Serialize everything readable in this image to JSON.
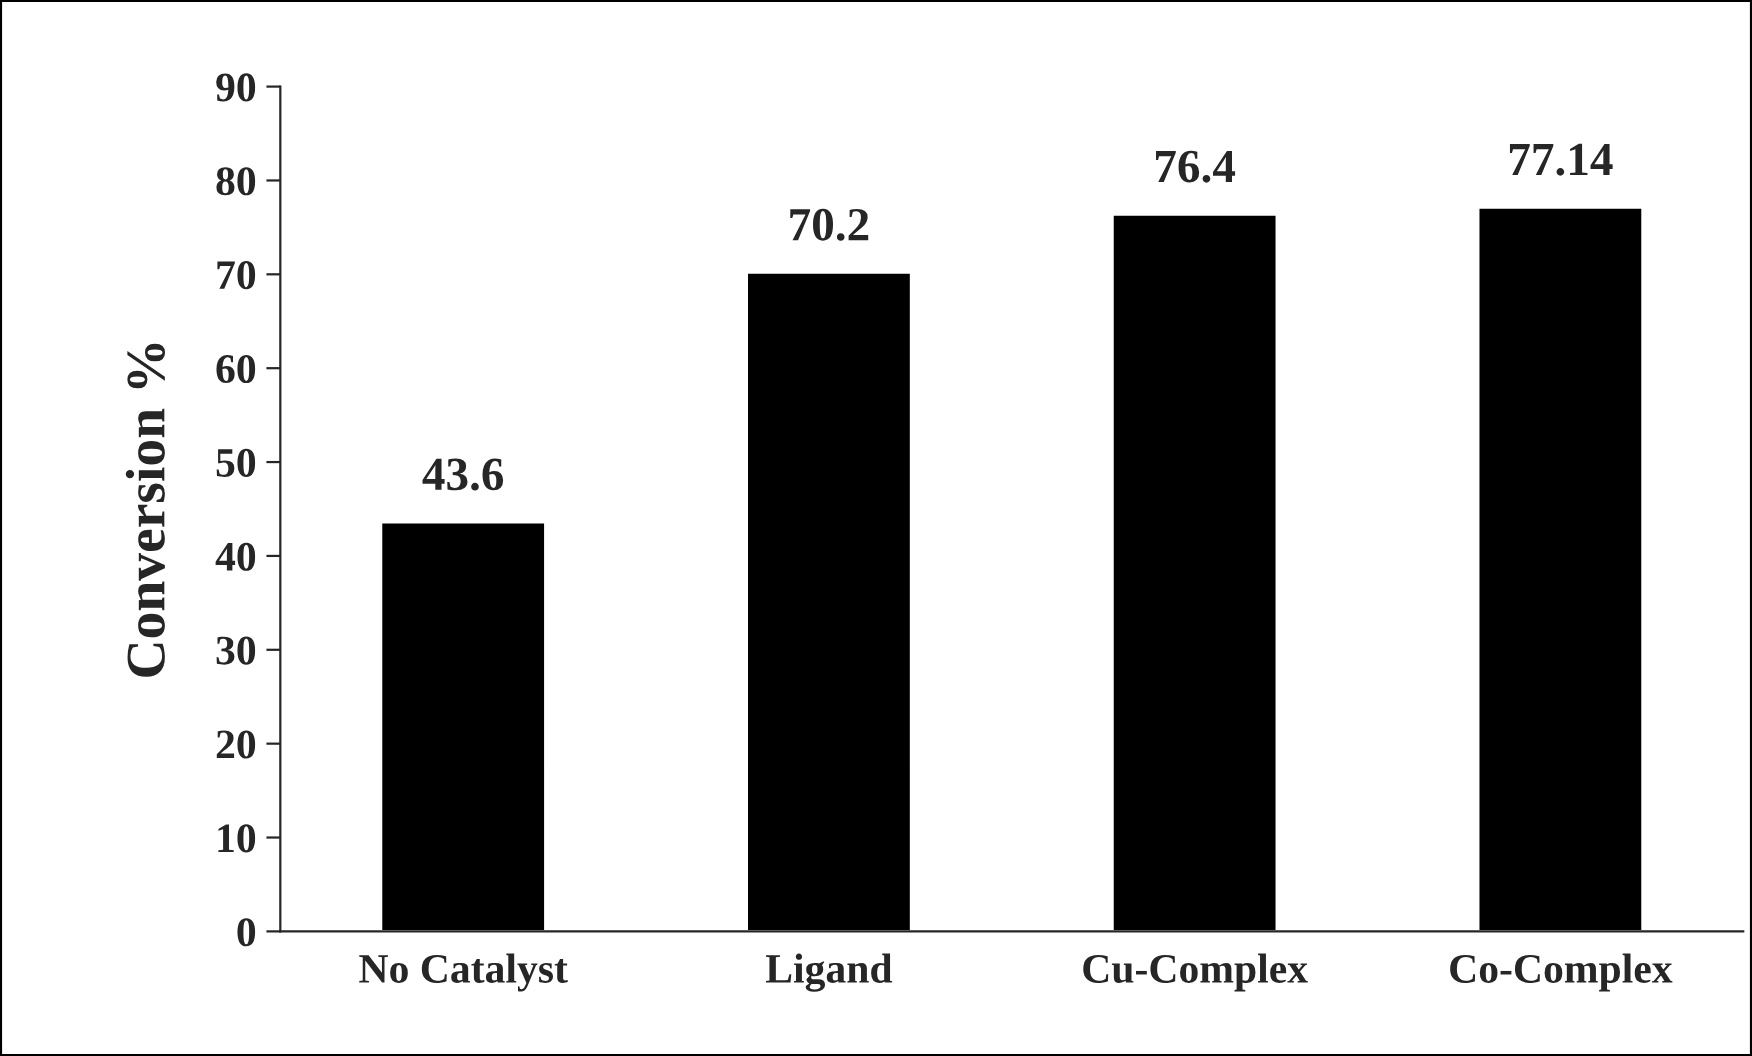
{
  "chart_data": {
    "type": "bar",
    "ylabel": "Conversion %",
    "categories": [
      "No Catalyst",
      "Ligand",
      "Cu-Complex",
      "Co-Complex"
    ],
    "values": [
      43.6,
      70.2,
      76.4,
      77.14
    ],
    "color": "#000000",
    "ylim": [
      0,
      90
    ],
    "yticks": [
      0,
      10,
      20,
      30,
      40,
      50,
      60,
      70,
      80,
      90
    ],
    "grid": false,
    "data_labels": true
  }
}
